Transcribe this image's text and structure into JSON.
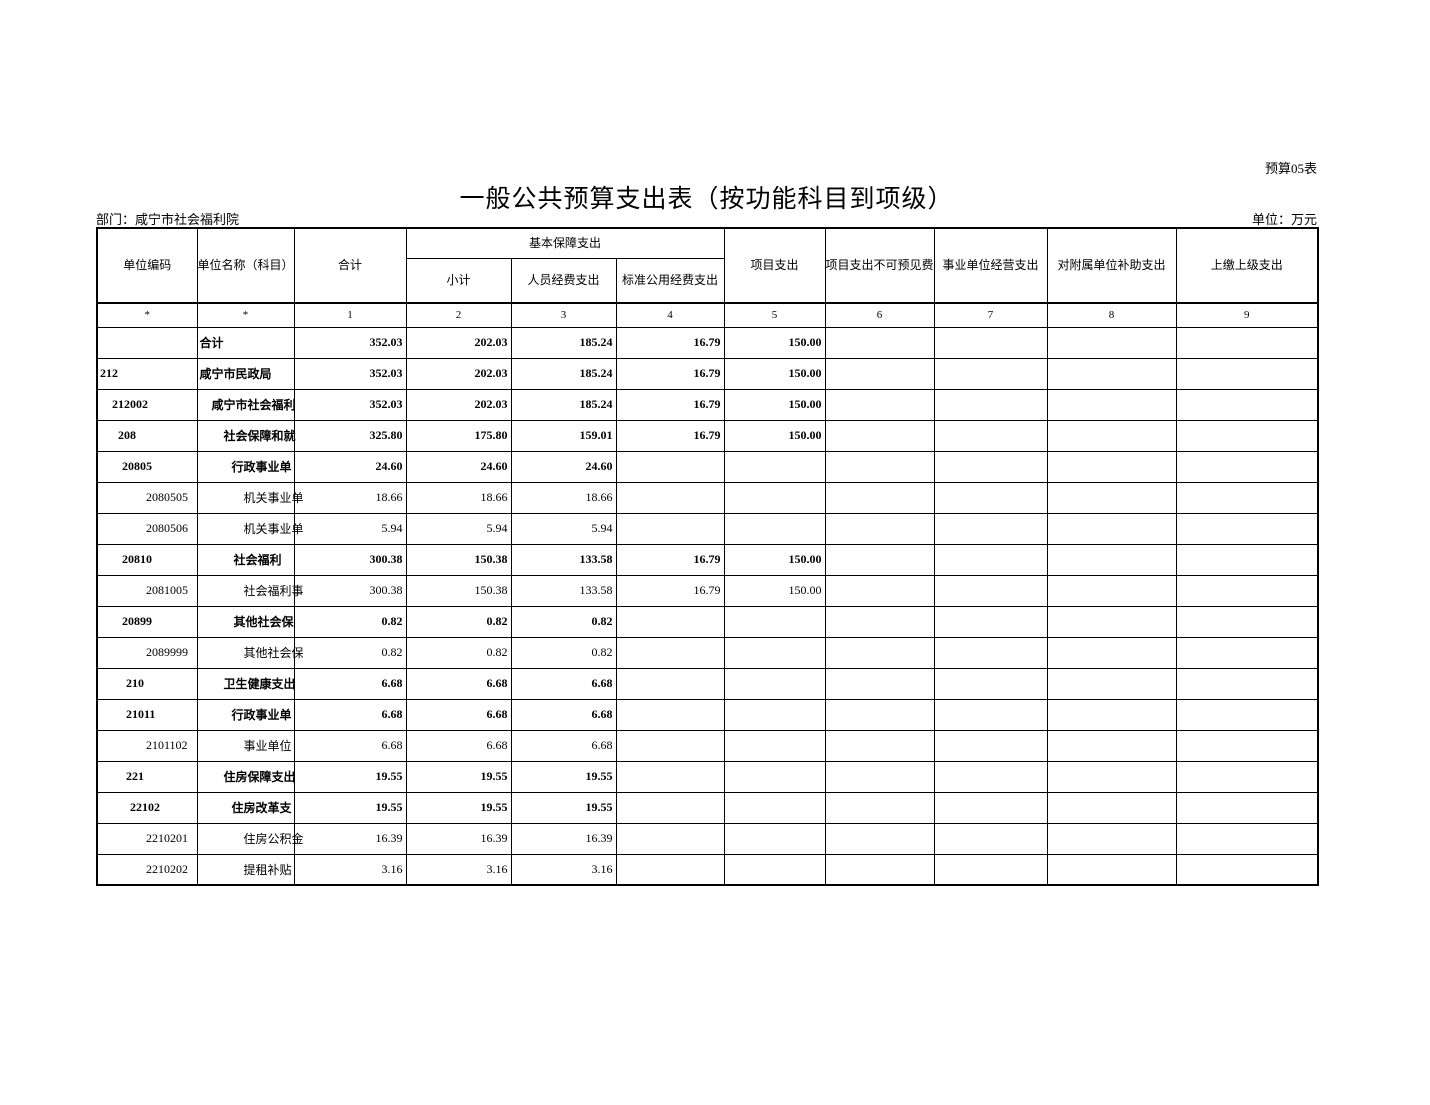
{
  "meta": {
    "sheet_label": "预算05表",
    "title": "一般公共预算支出表（按功能科目到项级）",
    "department": "部门：咸宁市社会福利院",
    "unit": "单位：万元"
  },
  "table": {
    "header": {
      "unit_code": "单位编码",
      "unit_name": "单位名称（科目）",
      "total": "合计",
      "basic_group": "基本保障支出",
      "subtotal": "小计",
      "personnel": "人员经费支出",
      "standard_public": "标准公用经费支出",
      "project": "项目支出",
      "project_contingency": "项目支出不可预见费",
      "operating": "事业单位经营支出",
      "subsidy_to_affiliates": "对附属单位补助支出",
      "remit_to_superior": "上缴上级支出"
    },
    "column_index_row": [
      "*",
      "*",
      "1",
      "2",
      "3",
      "4",
      "5",
      "6",
      "7",
      "8",
      "9"
    ],
    "rows": [
      {
        "code": "",
        "name": "合计",
        "bold": true,
        "code_indent": 2,
        "name_indent": 2,
        "values": [
          "352.03",
          "202.03",
          "185.24",
          "16.79",
          "150.00",
          "",
          "",
          "",
          ""
        ]
      },
      {
        "code": "212",
        "name": "咸宁市民政局",
        "bold": true,
        "code_indent": 2,
        "name_indent": 2,
        "values": [
          "352.03",
          "202.03",
          "185.24",
          "16.79",
          "150.00",
          "",
          "",
          "",
          ""
        ]
      },
      {
        "code": "212002",
        "name": "咸宁市社会福利",
        "bold": true,
        "code_indent": 14,
        "name_indent": 14,
        "values": [
          "352.03",
          "202.03",
          "185.24",
          "16.79",
          "150.00",
          "",
          "",
          "",
          ""
        ]
      },
      {
        "code": "208",
        "name": "社会保障和就",
        "bold": true,
        "code_indent": 20,
        "name_indent": 26,
        "values": [
          "325.80",
          "175.80",
          "159.01",
          "16.79",
          "150.00",
          "",
          "",
          "",
          ""
        ]
      },
      {
        "code": "20805",
        "name": "行政事业单",
        "bold": true,
        "code_indent": 24,
        "name_indent": 34,
        "values": [
          "24.60",
          "24.60",
          "24.60",
          "",
          "",
          "",
          "",
          "",
          ""
        ]
      },
      {
        "code": "2080505",
        "name": "机关事业单",
        "bold": false,
        "code_indent": 48,
        "name_indent": 46,
        "values": [
          "18.66",
          "18.66",
          "18.66",
          "",
          "",
          "",
          "",
          "",
          ""
        ]
      },
      {
        "code": "2080506",
        "name": "机关事业单",
        "bold": false,
        "code_indent": 48,
        "name_indent": 46,
        "values": [
          "5.94",
          "5.94",
          "5.94",
          "",
          "",
          "",
          "",
          "",
          ""
        ]
      },
      {
        "code": "20810",
        "name": "社会福利",
        "bold": true,
        "code_indent": 24,
        "name_indent": 36,
        "values": [
          "300.38",
          "150.38",
          "133.58",
          "16.79",
          "150.00",
          "",
          "",
          "",
          ""
        ]
      },
      {
        "code": "2081005",
        "name": "社会福利事",
        "bold": false,
        "code_indent": 48,
        "name_indent": 46,
        "values": [
          "300.38",
          "150.38",
          "133.58",
          "16.79",
          "150.00",
          "",
          "",
          "",
          ""
        ]
      },
      {
        "code": "20899",
        "name": "其他社会保",
        "bold": true,
        "code_indent": 24,
        "name_indent": 36,
        "values": [
          "0.82",
          "0.82",
          "0.82",
          "",
          "",
          "",
          "",
          "",
          ""
        ]
      },
      {
        "code": "2089999",
        "name": "其他社会保",
        "bold": false,
        "code_indent": 48,
        "name_indent": 46,
        "values": [
          "0.82",
          "0.82",
          "0.82",
          "",
          "",
          "",
          "",
          "",
          ""
        ]
      },
      {
        "code": "210",
        "name": "卫生健康支出",
        "bold": true,
        "code_indent": 28,
        "name_indent": 26,
        "values": [
          "6.68",
          "6.68",
          "6.68",
          "",
          "",
          "",
          "",
          "",
          ""
        ]
      },
      {
        "code": "21011",
        "name": "行政事业单",
        "bold": true,
        "code_indent": 28,
        "name_indent": 34,
        "values": [
          "6.68",
          "6.68",
          "6.68",
          "",
          "",
          "",
          "",
          "",
          ""
        ]
      },
      {
        "code": "2101102",
        "name": "事业单位",
        "bold": false,
        "code_indent": 48,
        "name_indent": 46,
        "values": [
          "6.68",
          "6.68",
          "6.68",
          "",
          "",
          "",
          "",
          "",
          ""
        ]
      },
      {
        "code": "221",
        "name": "住房保障支出",
        "bold": true,
        "code_indent": 28,
        "name_indent": 26,
        "values": [
          "19.55",
          "19.55",
          "19.55",
          "",
          "",
          "",
          "",
          "",
          ""
        ]
      },
      {
        "code": "22102",
        "name": "住房改革支",
        "bold": true,
        "code_indent": 32,
        "name_indent": 34,
        "values": [
          "19.55",
          "19.55",
          "19.55",
          "",
          "",
          "",
          "",
          "",
          ""
        ]
      },
      {
        "code": "2210201",
        "name": "住房公积金",
        "bold": false,
        "code_indent": 48,
        "name_indent": 46,
        "values": [
          "16.39",
          "16.39",
          "16.39",
          "",
          "",
          "",
          "",
          "",
          ""
        ]
      },
      {
        "code": "2210202",
        "name": "提租补贴",
        "bold": false,
        "code_indent": 48,
        "name_indent": 46,
        "values": [
          "3.16",
          "3.16",
          "3.16",
          "",
          "",
          "",
          "",
          "",
          ""
        ]
      }
    ]
  }
}
